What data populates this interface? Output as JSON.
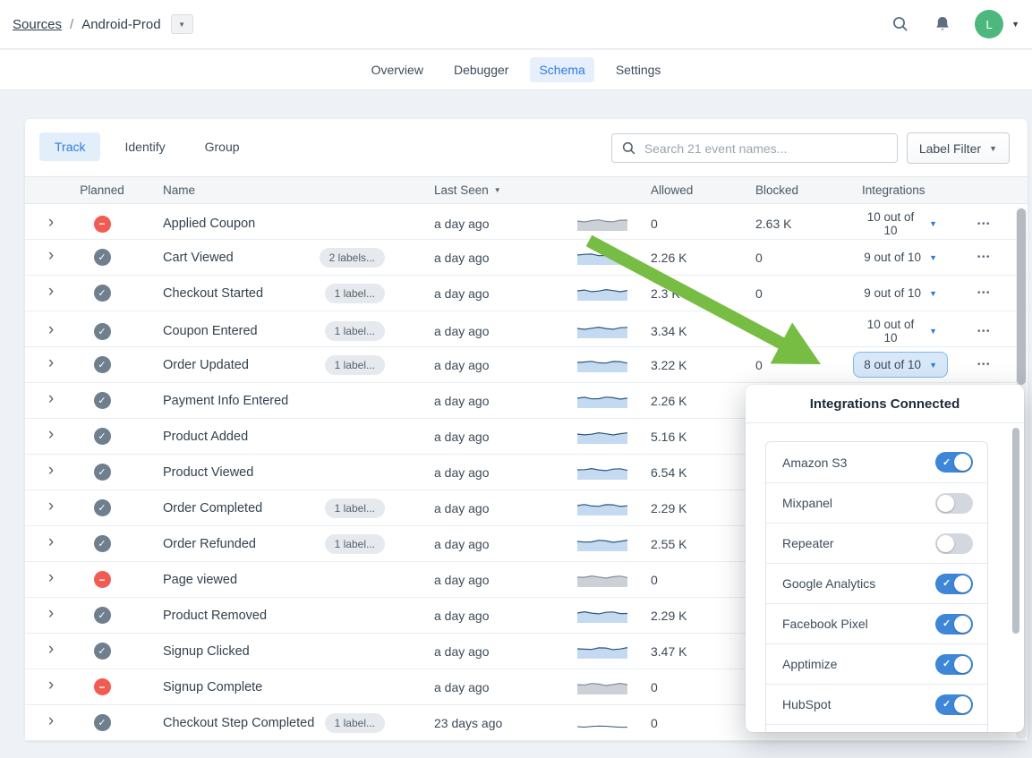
{
  "topbar": {
    "breadcrumb": {
      "root": "Sources",
      "separator": "/",
      "current": "Android-Prod"
    },
    "avatar_initial": "L"
  },
  "nav_tabs": [
    {
      "label": "Overview",
      "active": false
    },
    {
      "label": "Debugger",
      "active": false
    },
    {
      "label": "Schema",
      "active": true
    },
    {
      "label": "Settings",
      "active": false
    }
  ],
  "toolbar": {
    "segments": [
      {
        "label": "Track",
        "active": true
      },
      {
        "label": "Identify",
        "active": false
      },
      {
        "label": "Group",
        "active": false
      }
    ],
    "search_placeholder": "Search 21 event names...",
    "label_filter_label": "Label Filter"
  },
  "table": {
    "headers": {
      "planned": "Planned",
      "name": "Name",
      "last_seen": "Last Seen",
      "allowed": "Allowed",
      "blocked": "Blocked",
      "integrations": "Integrations"
    },
    "rows": [
      {
        "name": "Applied Coupon",
        "planned": "blocked",
        "label": "",
        "last_seen": "a day ago",
        "spark": "gray",
        "allowed": "0",
        "blocked": "2.63 K",
        "integrations": "10 out of 10",
        "selected": false
      },
      {
        "name": "Cart Viewed",
        "planned": "ok",
        "label": "2 labels...",
        "last_seen": "a day ago",
        "spark": "blue",
        "allowed": "2.26 K",
        "blocked": "0",
        "integrations": "9 out of 10",
        "selected": false
      },
      {
        "name": "Checkout Started",
        "planned": "ok",
        "label": "1 label...",
        "last_seen": "a day ago",
        "spark": "blue",
        "allowed": "2.3 K",
        "blocked": "0",
        "integrations": "9 out of 10",
        "selected": false
      },
      {
        "name": "Coupon Entered",
        "planned": "ok",
        "label": "1 label...",
        "last_seen": "a day ago",
        "spark": "blue",
        "allowed": "3.34 K",
        "blocked": "",
        "integrations": "10 out of 10",
        "selected": false
      },
      {
        "name": "Order Updated",
        "planned": "ok",
        "label": "1 label...",
        "last_seen": "a day ago",
        "spark": "blue",
        "allowed": "3.22 K",
        "blocked": "0",
        "integrations": "8 out of 10",
        "selected": true
      },
      {
        "name": "Payment Info Entered",
        "planned": "ok",
        "label": "",
        "last_seen": "a day ago",
        "spark": "blue",
        "allowed": "2.26 K",
        "blocked": "",
        "integrations": "",
        "selected": false
      },
      {
        "name": "Product Added",
        "planned": "ok",
        "label": "",
        "last_seen": "a day ago",
        "spark": "blue",
        "allowed": "5.16 K",
        "blocked": "",
        "integrations": "",
        "selected": false
      },
      {
        "name": "Product Viewed",
        "planned": "ok",
        "label": "",
        "last_seen": "a day ago",
        "spark": "blue",
        "allowed": "6.54 K",
        "blocked": "",
        "integrations": "",
        "selected": false
      },
      {
        "name": "Order Completed",
        "planned": "ok",
        "label": "1 label...",
        "last_seen": "a day ago",
        "spark": "blue",
        "allowed": "2.29 K",
        "blocked": "",
        "integrations": "",
        "selected": false
      },
      {
        "name": "Order Refunded",
        "planned": "ok",
        "label": "1 label...",
        "last_seen": "a day ago",
        "spark": "blue",
        "allowed": "2.55 K",
        "blocked": "",
        "integrations": "",
        "selected": false
      },
      {
        "name": "Page viewed",
        "planned": "blocked",
        "label": "",
        "last_seen": "a day ago",
        "spark": "gray",
        "allowed": "0",
        "blocked": "",
        "integrations": "",
        "selected": false
      },
      {
        "name": "Product Removed",
        "planned": "ok",
        "label": "",
        "last_seen": "a day ago",
        "spark": "blue",
        "allowed": "2.29 K",
        "blocked": "",
        "integrations": "",
        "selected": false
      },
      {
        "name": "Signup Clicked",
        "planned": "ok",
        "label": "",
        "last_seen": "a day ago",
        "spark": "blue",
        "allowed": "3.47 K",
        "blocked": "",
        "integrations": "",
        "selected": false
      },
      {
        "name": "Signup Complete",
        "planned": "blocked",
        "label": "",
        "last_seen": "a day ago",
        "spark": "gray",
        "allowed": "0",
        "blocked": "",
        "integrations": "",
        "selected": false
      },
      {
        "name": "Checkout Step Completed",
        "planned": "ok",
        "label": "1 label...",
        "last_seen": "23 days ago",
        "spark": "line",
        "allowed": "0",
        "blocked": "",
        "integrations": "",
        "selected": false
      }
    ]
  },
  "popup": {
    "title": "Integrations Connected",
    "items": [
      {
        "name": "Amazon S3",
        "enabled": true
      },
      {
        "name": "Mixpanel",
        "enabled": false
      },
      {
        "name": "Repeater",
        "enabled": false
      },
      {
        "name": "Google Analytics",
        "enabled": true
      },
      {
        "name": "Facebook Pixel",
        "enabled": true
      },
      {
        "name": "Apptimize",
        "enabled": true
      },
      {
        "name": "HubSpot",
        "enabled": true
      }
    ]
  },
  "colors": {
    "accent_blue": "#2b7ce0",
    "toggle_on": "#3d86d8",
    "toggle_off": "#d3d8de",
    "planned_ok": "#6f7f8e",
    "planned_blocked": "#f25b52",
    "arrow_green": "#77bd44",
    "avatar_green": "#4cb87e",
    "spark_blue_fill": "#c4daf0",
    "spark_blue_stroke": "#2f567e",
    "spark_gray_fill": "#ccd1d7",
    "spark_gray_stroke": "#848e99"
  }
}
